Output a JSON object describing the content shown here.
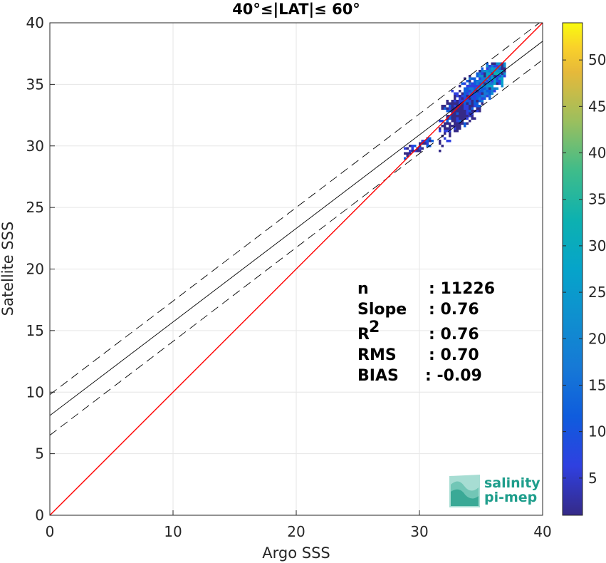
{
  "chart_data": {
    "type": "heatmap",
    "title": "40°≤|LAT|≤ 60°",
    "xlabel": "Argo SSS",
    "ylabel": "Satellite SSS",
    "xlim": [
      0,
      40
    ],
    "ylim": [
      0,
      40
    ],
    "xticks": [
      "0",
      "10",
      "20",
      "30",
      "40"
    ],
    "yticks": [
      "0",
      "5",
      "10",
      "15",
      "20",
      "25",
      "30",
      "35",
      "40"
    ],
    "grid": true,
    "colorbar": {
      "range": [
        1,
        54
      ],
      "ticks": [
        "5",
        "10",
        "15",
        "20",
        "25",
        "30",
        "35",
        "40",
        "45",
        "50"
      ],
      "colormap": "parula"
    },
    "lines": {
      "one_to_one": {
        "color": "#ff0000",
        "points": [
          [
            0,
            0
          ],
          [
            40,
            40
          ]
        ]
      },
      "regression": {
        "color": "#000000",
        "style": "solid",
        "points": [
          [
            0,
            8.1
          ],
          [
            40,
            38.5
          ]
        ]
      },
      "upper_bound": {
        "color": "#000000",
        "style": "dashed",
        "points": [
          [
            0,
            9.8
          ],
          [
            40,
            40.2
          ]
        ]
      },
      "lower_bound": {
        "color": "#000000",
        "style": "dashed",
        "points": [
          [
            0,
            6.5
          ],
          [
            40,
            37.0
          ]
        ]
      }
    },
    "density_cluster": {
      "x_range": [
        29.5,
        36.8
      ],
      "y_range": [
        29.5,
        36.8
      ],
      "peak_x": 36.2,
      "peak_y": 35.8
    },
    "stats": [
      {
        "label": "n",
        "value": ": 11226"
      },
      {
        "label": "Slope",
        "value": ": 0.76"
      },
      {
        "label": "R",
        "superscript": "2",
        "value": ": 0.76"
      },
      {
        "label": "RMS",
        "value": ": 0.70"
      },
      {
        "label": "BIAS",
        "value": ": -0.09"
      }
    ]
  },
  "logo": {
    "line1": "salinity",
    "line2": "pi-mep"
  }
}
